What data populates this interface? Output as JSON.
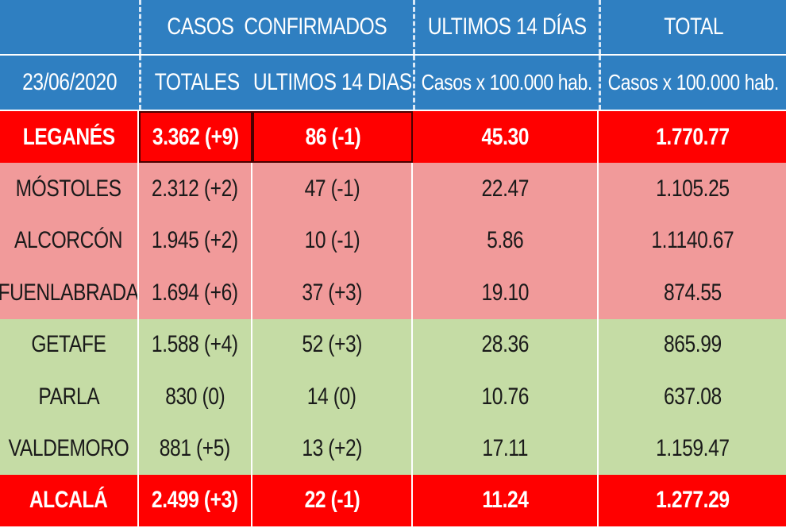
{
  "header": {
    "casos_confirmados": "CASOS  CONFIRMADOS",
    "ultimos_14_dias": "ULTIMOS 14 DÍAS",
    "total": "TOTAL",
    "date": "23/06/2020",
    "totales": "TOTALES",
    "ultimos_14_dias_sub": "ULTIMOS 14 DIAS",
    "casos_100k_a": "Casos x 100.000 hab.",
    "casos_100k_b": "Casos x 100.000 hab."
  },
  "colors": {
    "header_blue": "#2f7fc1",
    "highlight_red": "#ff0000",
    "pink": "#f19a9a",
    "green": "#c5dca5"
  },
  "rows": [
    {
      "name": "LEGANÉS",
      "totales": "3.362 (+9)",
      "ultimos": "86 (-1)",
      "inc14": "45.30",
      "total": "1.770.77",
      "style": "red"
    },
    {
      "name": "MÓSTOLES",
      "totales": "2.312 (+2)",
      "ultimos": "47 (-1)",
      "inc14": "22.47",
      "total": "1.105.25",
      "style": "pink"
    },
    {
      "name": "ALCORCÓN",
      "totales": "1.945 (+2)",
      "ultimos": "10 (-1)",
      "inc14": "5.86",
      "total": "1.1140.67",
      "style": "pink"
    },
    {
      "name": "FUENLABRADA",
      "totales": "1.694 (+6)",
      "ultimos": "37 (+3)",
      "inc14": "19.10",
      "total": "874.55",
      "style": "pink"
    },
    {
      "name": "GETAFE",
      "totales": "1.588 (+4)",
      "ultimos": "52 (+3)",
      "inc14": "28.36",
      "total": "865.99",
      "style": "green"
    },
    {
      "name": "PARLA",
      "totales": "830 (0)",
      "ultimos": "14 (0)",
      "inc14": "10.76",
      "total": "637.08",
      "style": "green"
    },
    {
      "name": "VALDEMORO",
      "totales": "881 (+5)",
      "ultimos": "13 (+2)",
      "inc14": "17.11",
      "total": "1.159.47",
      "style": "green"
    },
    {
      "name": "ALCALÁ",
      "totales": "2.499 (+3)",
      "ultimos": "22 (-1)",
      "inc14": "11.24",
      "total": "1.277.29",
      "style": "red"
    }
  ]
}
